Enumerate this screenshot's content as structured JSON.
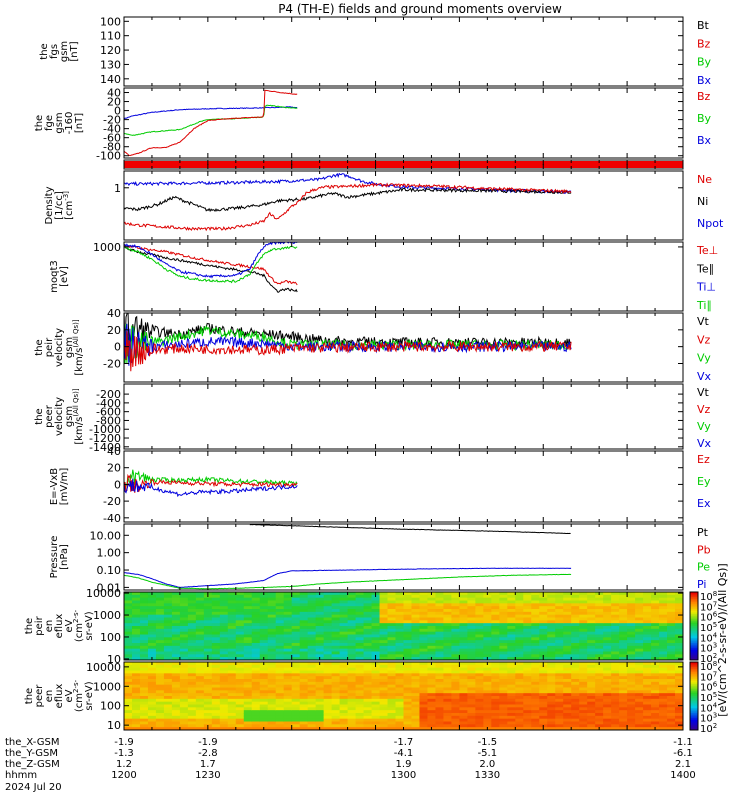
{
  "title": "P4 (TH-E) fields and ground moments overview",
  "colors": {
    "black": "#000000",
    "red": "#dd0000",
    "green": "#00cc00",
    "blue": "#0000dd"
  },
  "chart_data": [
    {
      "id": "fgs",
      "type": "line",
      "ylabel_lines": [
        "the",
        "fgs",
        "gsm",
        "[nT]"
      ],
      "yticks": [
        "100",
        "110",
        "120",
        "130",
        "140"
      ],
      "ylim": [
        145,
        97
      ],
      "legend": [
        {
          "name": "Bt",
          "color": "#000000"
        },
        {
          "name": "Bz",
          "color": "#dd0000"
        },
        {
          "name": "By",
          "color": "#00cc00"
        },
        {
          "name": "Bx",
          "color": "#0000dd"
        }
      ],
      "series": []
    },
    {
      "id": "fge",
      "type": "line",
      "ylabel_lines": [
        "the",
        "fge",
        "gsm",
        "-160",
        "[nT]"
      ],
      "yticks": [
        "40",
        "20",
        "0",
        "-20",
        "-40",
        "-60",
        "-80",
        "-100"
      ],
      "ylim": [
        -105,
        50
      ],
      "legend": [
        {
          "name": "Bz",
          "color": "#dd0000"
        },
        {
          "name": "By",
          "color": "#00cc00"
        },
        {
          "name": "Bx",
          "color": "#0000dd"
        }
      ],
      "series": [
        {
          "color": "#0000dd",
          "x": [
            1200,
            1203,
            1210,
            1220,
            1230,
            1240,
            1250,
            1260,
            1262
          ],
          "y": [
            -18,
            -12,
            -4,
            2,
            4,
            5,
            6,
            8,
            6
          ]
        },
        {
          "color": "#00cc00",
          "x": [
            1200,
            1203,
            1210,
            1220,
            1227,
            1230,
            1240,
            1250,
            1250.3,
            1252,
            1256,
            1262
          ],
          "y": [
            -50,
            -55,
            -47,
            -42,
            -25,
            -20,
            -18,
            -14,
            10,
            12,
            8,
            5
          ]
        },
        {
          "color": "#dd0000",
          "x": [
            1200,
            1202,
            1205,
            1210,
            1215,
            1220,
            1225,
            1230,
            1240,
            1250,
            1250.3,
            1256,
            1262
          ],
          "y": [
            -90,
            -100,
            -95,
            -82,
            -82,
            -70,
            -40,
            -22,
            -17,
            -14,
            45,
            40,
            36
          ]
        }
      ]
    },
    {
      "id": "eff",
      "type": "line",
      "ylabel_lines": [],
      "yticks": [],
      "ylim": [
        0,
        1
      ],
      "legend": [],
      "series": []
    },
    {
      "id": "density",
      "type": "line",
      "ylabel_lines": [
        "Density",
        "[1/cc]",
        "[cm^-3]"
      ],
      "yticks": [
        "1"
      ],
      "ylim": [
        -1.4,
        0.45
      ],
      "log": true,
      "legend": [
        {
          "name": "Ne",
          "color": "#dd0000"
        },
        {
          "name": "Ni",
          "color": "#000000"
        },
        {
          "name": "Npot",
          "color": "#0000dd"
        }
      ],
      "series": [
        {
          "color": "#0000dd",
          "x": [
            1200,
            1220,
            1240,
            1255,
            1270,
            1275,
            1278,
            1281,
            1285,
            1290,
            1300,
            1330,
            1360
          ],
          "y": [
            0.1,
            0.12,
            0.14,
            0.17,
            0.22,
            0.33,
            0.35,
            0.3,
            0.18,
            0.1,
            0.02,
            -0.05,
            -0.12
          ]
        },
        {
          "color": "#000000",
          "x": [
            1200,
            1205,
            1212,
            1218,
            1225,
            1230,
            1240,
            1250,
            1255,
            1265,
            1270,
            1275,
            1280,
            1290,
            1300,
            1330,
            1360
          ],
          "y": [
            -0.55,
            -0.58,
            -0.45,
            -0.25,
            -0.45,
            -0.6,
            -0.55,
            -0.45,
            -0.35,
            -0.3,
            -0.22,
            -0.15,
            -0.25,
            -0.15,
            -0.05,
            -0.08,
            -0.12
          ]
        },
        {
          "color": "#dd0000",
          "x": [
            1200,
            1205,
            1215,
            1225,
            1235,
            1245,
            1250,
            1252,
            1255,
            1260,
            1263,
            1265,
            1268,
            1272,
            1278,
            1290,
            1310,
            1330,
            1360
          ],
          "y": [
            -0.95,
            -1.0,
            -1.05,
            -1.1,
            -1.1,
            -1.0,
            -0.9,
            -0.7,
            -0.85,
            -0.5,
            -0.35,
            -0.15,
            -0.05,
            0.02,
            0.03,
            0.08,
            0.05,
            -0.02,
            -0.1
          ]
        }
      ]
    },
    {
      "id": "temperature",
      "type": "line",
      "ylabel_lines": [
        "moqt3",
        "[eV]"
      ],
      "yticks": [
        "1000"
      ],
      "ylim": [
        1.7,
        3.1
      ],
      "log": true,
      "legend": [
        {
          "name": "Te⊥",
          "color": "#dd0000"
        },
        {
          "name": "Te∥",
          "color": "#000000"
        },
        {
          "name": "Ti⊥",
          "color": "#0000dd"
        },
        {
          "name": "Ti∥",
          "color": "#00cc00"
        }
      ],
      "series": [
        {
          "color": "#dd0000",
          "x": [
            1200,
            1205,
            1215,
            1225,
            1235,
            1245,
            1250,
            1253,
            1255,
            1258,
            1262
          ],
          "y": [
            3.03,
            2.98,
            2.9,
            2.78,
            2.68,
            2.6,
            2.55,
            2.35,
            2.25,
            2.3,
            2.25
          ]
        },
        {
          "color": "#000000",
          "x": [
            1200,
            1205,
            1215,
            1225,
            1235,
            1245,
            1250,
            1253,
            1255,
            1258,
            1262
          ],
          "y": [
            2.98,
            2.9,
            2.78,
            2.68,
            2.58,
            2.5,
            2.42,
            2.2,
            2.1,
            2.15,
            2.1
          ]
        },
        {
          "color": "#0000dd",
          "x": [
            1200,
            1205,
            1210,
            1215,
            1220,
            1225,
            1230,
            1240,
            1245,
            1248,
            1250,
            1253,
            1262
          ],
          "y": [
            3.05,
            3.0,
            2.85,
            2.65,
            2.5,
            2.45,
            2.4,
            2.42,
            2.55,
            2.85,
            3.0,
            3.08,
            3.1
          ]
        },
        {
          "color": "#00cc00",
          "x": [
            1200,
            1205,
            1210,
            1215,
            1220,
            1225,
            1230,
            1240,
            1245,
            1248,
            1250,
            1253,
            1262
          ],
          "y": [
            3.0,
            2.9,
            2.75,
            2.55,
            2.4,
            2.35,
            2.32,
            2.3,
            2.45,
            2.7,
            2.85,
            2.95,
            3.0
          ]
        }
      ]
    },
    {
      "id": "peir_velocity",
      "type": "line",
      "ylabel_lines": [
        "the",
        "peir",
        "velocity",
        "gsm",
        "[km/s^(All Qs)]"
      ],
      "yticks": [
        "40",
        "20",
        "0",
        "-20"
      ],
      "ylim": [
        -42,
        40
      ],
      "legend": [
        {
          "name": "Vt",
          "color": "#000000"
        },
        {
          "name": "Vz",
          "color": "#dd0000"
        },
        {
          "name": "Vy",
          "color": "#00cc00"
        },
        {
          "name": "Vx",
          "color": "#0000dd"
        }
      ],
      "series": [
        {
          "color": "#000000",
          "x": [
            1200,
            1210,
            1220,
            1230,
            1240,
            1250,
            1260,
            1270,
            1280,
            1300,
            1320,
            1340,
            1360
          ],
          "y": [
            22,
            18,
            15,
            22,
            18,
            15,
            12,
            8,
            6,
            5,
            5,
            5,
            5
          ]
        },
        {
          "color": "#00cc00",
          "x": [
            1200,
            1210,
            1220,
            1230,
            1240,
            1250,
            1260,
            1300,
            1360
          ],
          "y": [
            5,
            4,
            12,
            20,
            15,
            12,
            2,
            2,
            2
          ]
        },
        {
          "color": "#0000dd",
          "x": [
            1200,
            1210,
            1220,
            1230,
            1240,
            1250,
            1260,
            1300,
            1360
          ],
          "y": [
            0,
            0,
            3,
            6,
            5,
            4,
            0,
            0,
            0
          ]
        },
        {
          "color": "#dd0000",
          "x": [
            1200,
            1210,
            1220,
            1230,
            1240,
            1250,
            1260,
            1300,
            1360
          ],
          "y": [
            -5,
            -4,
            -2,
            -3,
            -3,
            -4,
            -2,
            0,
            0
          ]
        }
      ]
    },
    {
      "id": "peer_velocity",
      "type": "line",
      "ylabel_lines": [
        "the",
        "peer",
        "velocity",
        "gsm",
        "[km/s^(All Qs)]"
      ],
      "yticks": [
        "-200",
        "-400",
        "-600",
        "-800",
        "-1000",
        "-1200",
        "-1400"
      ],
      "ylim": [
        -1450,
        30
      ],
      "legend": [
        {
          "name": "Vt",
          "color": "#000000"
        },
        {
          "name": "Vz",
          "color": "#dd0000"
        },
        {
          "name": "Vy",
          "color": "#00cc00"
        },
        {
          "name": "Vx",
          "color": "#0000dd"
        }
      ],
      "series": []
    },
    {
      "id": "efield",
      "type": "line",
      "ylabel_lines": [
        "E=-VxB",
        "[mV/m]"
      ],
      "yticks": [
        "40",
        "20",
        "0",
        "-20",
        "-40"
      ],
      "ylim": [
        -45,
        40
      ],
      "legend": [
        {
          "name": "Ez",
          "color": "#dd0000"
        },
        {
          "name": "Ey",
          "color": "#00cc00"
        },
        {
          "name": "Ex",
          "color": "#0000dd"
        }
      ],
      "series": [
        {
          "color": "#00cc00",
          "x": [
            1200,
            1205,
            1210,
            1220,
            1230,
            1240,
            1250,
            1262
          ],
          "y": [
            5,
            10,
            6,
            5,
            6,
            4,
            3,
            1
          ]
        },
        {
          "color": "#dd0000",
          "x": [
            1200,
            1205,
            1210,
            1220,
            1230,
            1240,
            1250,
            1262
          ],
          "y": [
            2,
            -2,
            3,
            2,
            1,
            0,
            0,
            0
          ]
        },
        {
          "color": "#0000dd",
          "x": [
            1200,
            1205,
            1210,
            1215,
            1220,
            1225,
            1230,
            1240,
            1250,
            1262
          ],
          "y": [
            0,
            -2,
            -4,
            -8,
            -12,
            -10,
            -9,
            -8,
            -5,
            -2
          ]
        }
      ]
    },
    {
      "id": "pressure",
      "type": "line",
      "ylabel_lines": [
        "Pressure",
        "[nPa]"
      ],
      "yticks": [
        "10.00",
        "1.00",
        "0.10",
        "0.01"
      ],
      "ylim": [
        -2.15,
        1.65
      ],
      "log": true,
      "legend": [
        {
          "name": "Pt",
          "color": "#000000"
        },
        {
          "name": "Pb",
          "color": "#dd0000"
        },
        {
          "name": "Pe",
          "color": "#00cc00"
        },
        {
          "name": "Pi",
          "color": "#0000dd"
        }
      ],
      "series": [
        {
          "color": "#000000",
          "x": [
            1245,
            1260,
            1280,
            1300,
            1320,
            1340,
            1360
          ],
          "y": [
            1.62,
            1.55,
            1.45,
            1.35,
            1.28,
            1.2,
            1.1
          ]
        },
        {
          "color": "#0000dd",
          "x": [
            1200,
            1205,
            1210,
            1215,
            1220,
            1230,
            1240,
            1250,
            1255,
            1260,
            1280,
            1300,
            1330,
            1360
          ],
          "y": [
            -1.15,
            -1.25,
            -1.5,
            -1.8,
            -2.0,
            -1.9,
            -1.8,
            -1.6,
            -1.2,
            -1.05,
            -1.0,
            -0.95,
            -0.9,
            -0.9
          ]
        },
        {
          "color": "#00cc00",
          "x": [
            1200,
            1205,
            1210,
            1220,
            1230,
            1240,
            1250,
            1260,
            1270,
            1280,
            1300,
            1320,
            1340,
            1360
          ],
          "y": [
            -1.3,
            -1.45,
            -1.7,
            -2.05,
            -2.08,
            -2.05,
            -2.0,
            -1.95,
            -1.8,
            -1.7,
            -1.55,
            -1.4,
            -1.3,
            -1.25
          ]
        }
      ]
    },
    {
      "id": "peir_spec",
      "type": "heatmap",
      "ylabel_lines": [
        "the",
        "peir",
        "en",
        "eflux",
        "eV",
        "(cm^2-s-",
        "sr-eV)"
      ],
      "yticks": [
        "10000",
        "1000",
        "100",
        "10"
      ],
      "ylim": [
        0.95,
        4.05
      ],
      "log": true,
      "colorbar_ticks": [
        "10^8",
        "10^7",
        "10^6",
        "10^5",
        "10^4",
        "10^3",
        "10^2"
      ],
      "legend": [],
      "series": []
    },
    {
      "id": "peer_spec",
      "type": "heatmap",
      "ylabel_lines": [
        "the",
        "peer",
        "en",
        "eflux",
        "eV",
        "(cm^2-s-",
        "sr-eV)"
      ],
      "yticks": [
        "10000",
        "1000",
        "100",
        "10"
      ],
      "ylim": [
        0.75,
        4.25
      ],
      "log": true,
      "colorbar_ticks": [
        "10^8",
        "10^7",
        "10^6",
        "10^5",
        "10^4",
        "10^3",
        "10^2"
      ],
      "legend": [],
      "series": []
    }
  ],
  "colorbar_label": "[eV/(cm^2-s-sr-eV)/(All Qs)]",
  "time_axis": {
    "range": [
      1200,
      1400
    ],
    "rows": [
      {
        "label": "the_X-GSM",
        "values": [
          "-1.9",
          "-1.9",
          "-1.7",
          "-1.5",
          "-1.1"
        ]
      },
      {
        "label": "the_Y-GSM",
        "values": [
          "-1.3",
          "-2.8",
          "-4.1",
          "-5.1",
          "-6.1"
        ]
      },
      {
        "label": "the_Z-GSM",
        "values": [
          "1.2",
          "1.7",
          "1.9",
          "2.0",
          "2.1"
        ]
      },
      {
        "label": "hhmm",
        "values": [
          "1200",
          "1230",
          "1300",
          "1330",
          "1400"
        ]
      }
    ],
    "date": "2024 Jul 20"
  }
}
